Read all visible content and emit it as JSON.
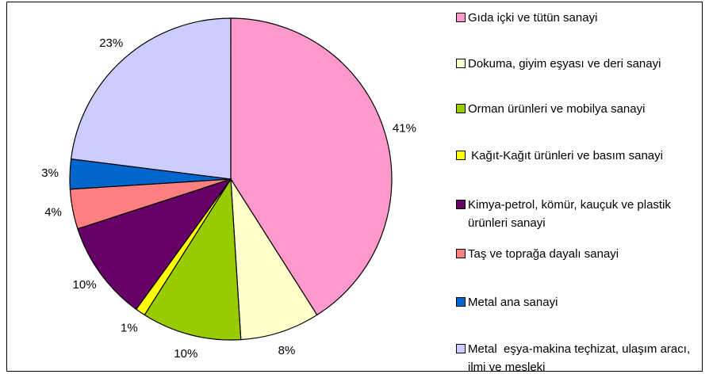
{
  "chart_data": {
    "type": "pie",
    "categories": [
      "Gıda içki ve tütün sanayi",
      "Dokuma, giyim eşyası ve deri sanayi",
      "Orman ürünleri ve mobilya sanayi",
      " Kağıt-Kağıt ürünleri ve basım sanayi",
      "Kimya-petrol, kömür, kauçuk ve plastik ürünleri sanayi",
      "Taş ve toprağa dayalı sanayi",
      "Metal ana sanayi",
      "Metal  eşya-makina teçhizat, ulaşım aracı, ilmi ve mesleki"
    ],
    "values": [
      41,
      8,
      10,
      1,
      10,
      4,
      3,
      23
    ],
    "value_labels": [
      "41%",
      "8%",
      "10%",
      "1%",
      "10%",
      "4%",
      "3%",
      "23%"
    ],
    "colors": [
      "#ff99cc",
      "#ffffcc",
      "#99cc00",
      "#ffff00",
      "#660066",
      "#ff8080",
      "#0066cc",
      "#ccccff"
    ],
    "legend": "right"
  }
}
